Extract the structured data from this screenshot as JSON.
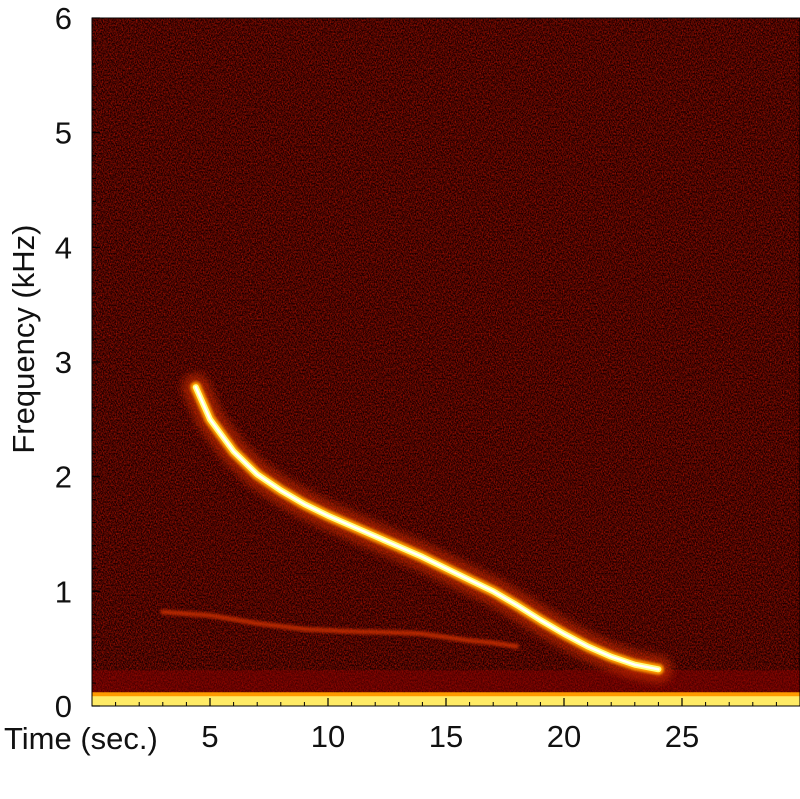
{
  "chart_data": {
    "type": "heatmap",
    "title": "",
    "xlabel": "Time (sec.)",
    "ylabel": "Frequency (kHz)",
    "xlim": [
      0,
      30
    ],
    "ylim": [
      0,
      6
    ],
    "x_ticks": [
      5,
      10,
      15,
      20,
      25
    ],
    "x_tick_labels": [
      "5",
      "10",
      "15",
      "20",
      "25"
    ],
    "y_ticks": [
      0,
      1,
      2,
      3,
      4,
      5,
      6
    ],
    "y_tick_labels": [
      "0",
      "1",
      "2",
      "3",
      "4",
      "5",
      "6"
    ],
    "grid": false,
    "colormap": [
      "#000000",
      "#3a0000",
      "#8b0000",
      "#d43000",
      "#ff9a00",
      "#ffff80",
      "#ffffff"
    ],
    "background_color": "#1a0000",
    "series": [
      {
        "kind": "main-tone",
        "points": [
          [
            4.4,
            2.78
          ],
          [
            5,
            2.5
          ],
          [
            6,
            2.22
          ],
          [
            7,
            2.02
          ],
          [
            8,
            1.88
          ],
          [
            9,
            1.76
          ],
          [
            10,
            1.66
          ],
          [
            11,
            1.57
          ],
          [
            12,
            1.48
          ],
          [
            13,
            1.39
          ],
          [
            14,
            1.3
          ],
          [
            15,
            1.2
          ],
          [
            16,
            1.1
          ],
          [
            17,
            1.0
          ],
          [
            18,
            0.88
          ],
          [
            19,
            0.75
          ],
          [
            20,
            0.63
          ],
          [
            21,
            0.52
          ],
          [
            22,
            0.43
          ],
          [
            23,
            0.36
          ],
          [
            24,
            0.32
          ]
        ]
      },
      {
        "kind": "faint-tone",
        "points": [
          [
            3,
            0.82
          ],
          [
            5,
            0.79
          ],
          [
            7,
            0.72
          ],
          [
            9,
            0.67
          ],
          [
            11,
            0.65
          ],
          [
            13,
            0.64
          ],
          [
            14,
            0.63
          ],
          [
            15,
            0.6
          ],
          [
            16,
            0.57
          ],
          [
            17,
            0.55
          ],
          [
            18,
            0.52
          ]
        ]
      }
    ],
    "low_frequency_band": [
      0,
      0.12
    ]
  }
}
